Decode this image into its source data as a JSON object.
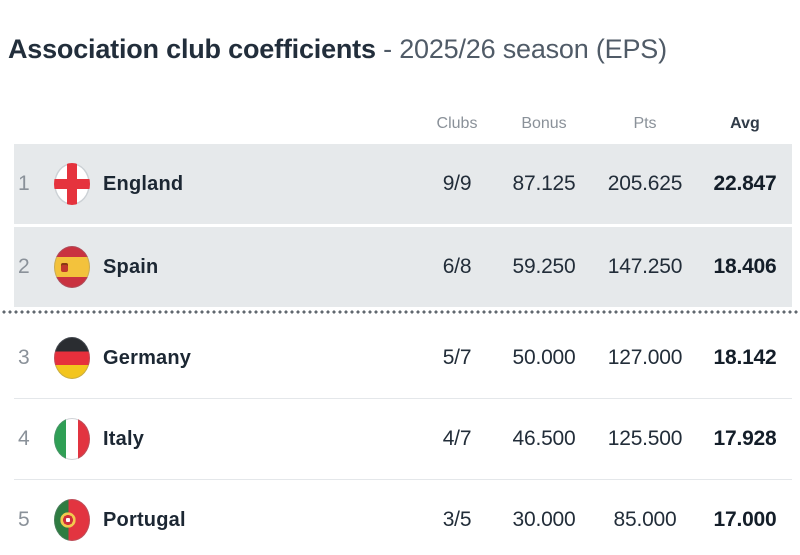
{
  "page": {
    "title": "Association club coefficients",
    "title_season": "- 2025/26 season (EPS)"
  },
  "table": {
    "headers": {
      "clubs": "Clubs",
      "bonus": "Bonus",
      "pts": "Pts",
      "avg": "Avg"
    },
    "rows": [
      {
        "rank": "1",
        "country": "England",
        "flag_icon": "england-flag-icon",
        "clubs": "9/9",
        "bonus": "87.125",
        "pts": "205.625",
        "avg": "22.847",
        "highlighted": true
      },
      {
        "rank": "2",
        "country": "Spain",
        "flag_icon": "spain-flag-icon",
        "clubs": "6/8",
        "bonus": "59.250",
        "pts": "147.250",
        "avg": "18.406",
        "highlighted": true
      },
      {
        "rank": "3",
        "country": "Germany",
        "flag_icon": "germany-flag-icon",
        "clubs": "5/7",
        "bonus": "50.000",
        "pts": "127.000",
        "avg": "18.142",
        "highlighted": false
      },
      {
        "rank": "4",
        "country": "Italy",
        "flag_icon": "italy-flag-icon",
        "clubs": "4/7",
        "bonus": "46.500",
        "pts": "125.500",
        "avg": "17.928",
        "highlighted": false
      },
      {
        "rank": "5",
        "country": "Portugal",
        "flag_icon": "portugal-flag-icon",
        "clubs": "3/5",
        "bonus": "30.000",
        "pts": "85.000",
        "avg": "17.000",
        "highlighted": false
      }
    ],
    "cutoff_after_rank": 2
  },
  "colors": {
    "highlight_row_bg": "#e6e9eb",
    "dark_text": "#212c38",
    "muted_text": "#8a9199",
    "cutoff_dot_color": "#61686f"
  }
}
